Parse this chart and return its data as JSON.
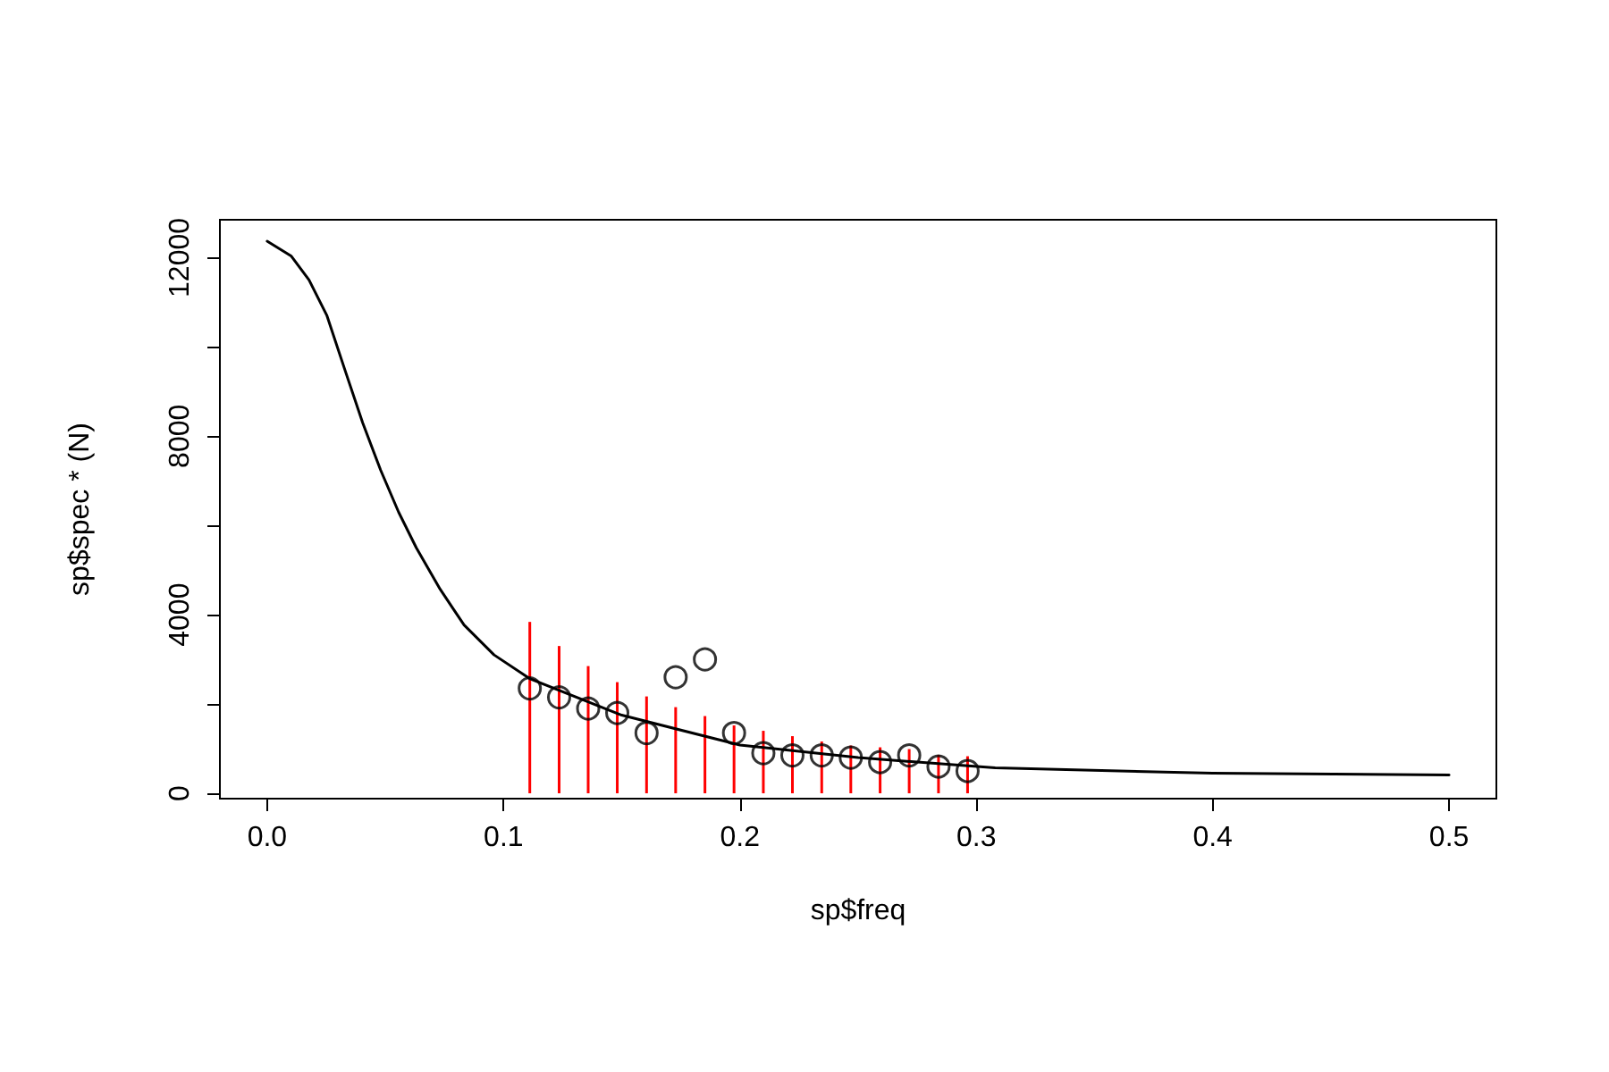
{
  "chart_data": {
    "type": "scatter",
    "xlabel": "sp$freq",
    "ylabel": "sp$spec * (N)",
    "xlim": [
      -0.02,
      0.52
    ],
    "ylim": [
      -120,
      12850
    ],
    "xticks": [
      {
        "value": 0,
        "label": "0.0"
      },
      0.1,
      0.2,
      0.3,
      0.4,
      0.5
    ],
    "yticks": [
      0,
      {
        "value": 2000,
        "label": null
      },
      4000,
      {
        "value": 6000,
        "label": null
      },
      8000,
      {
        "value": 10000,
        "label": null
      },
      12000
    ],
    "marker": "circle",
    "grid": false,
    "series": [
      {
        "type": "bar",
        "color": "#ff0000",
        "x": [
          0.1111,
          0.1235,
          0.1358,
          0.1481,
          0.1605,
          0.1728,
          0.1852,
          0.1975,
          0.2099,
          0.2222,
          0.2346,
          0.2469,
          0.2593,
          0.2716,
          0.284,
          0.2963
        ],
        "values": [
          3840,
          3300,
          2850,
          2490,
          2170,
          1930,
          1730,
          1520,
          1400,
          1280,
          1160,
          1070,
          1030,
          990,
          860,
          830
        ]
      },
      {
        "type": "line",
        "marker": "none",
        "color": "#000000",
        "x": [
          0,
          0.0101,
          0.0177,
          0.0253,
          0.0328,
          0.0404,
          0.048,
          0.0556,
          0.0631,
          0.0732,
          0.0833,
          0.096,
          0.111,
          0.15,
          0.2,
          0.25,
          0.308,
          0.4,
          0.5
        ],
        "values": [
          12370,
          12040,
          11500,
          10700,
          9500,
          8300,
          7240,
          6300,
          5500,
          4570,
          3770,
          3100,
          2570,
          1750,
          1080,
          800,
          570,
          450,
          410
        ]
      },
      {
        "color": "#000000",
        "x": [
          0.1111,
          0.1235,
          0.1358,
          0.1481,
          0.1605,
          0.1728,
          0.1852,
          0.1975,
          0.2099,
          0.2222,
          0.2346,
          0.2469,
          0.2593,
          0.2716,
          0.284,
          0.2963
        ],
        "values": [
          2350,
          2150,
          1900,
          1800,
          1350,
          2600,
          3000,
          1350,
          900,
          850,
          850,
          800,
          700,
          850,
          600,
          500
        ]
      }
    ]
  }
}
